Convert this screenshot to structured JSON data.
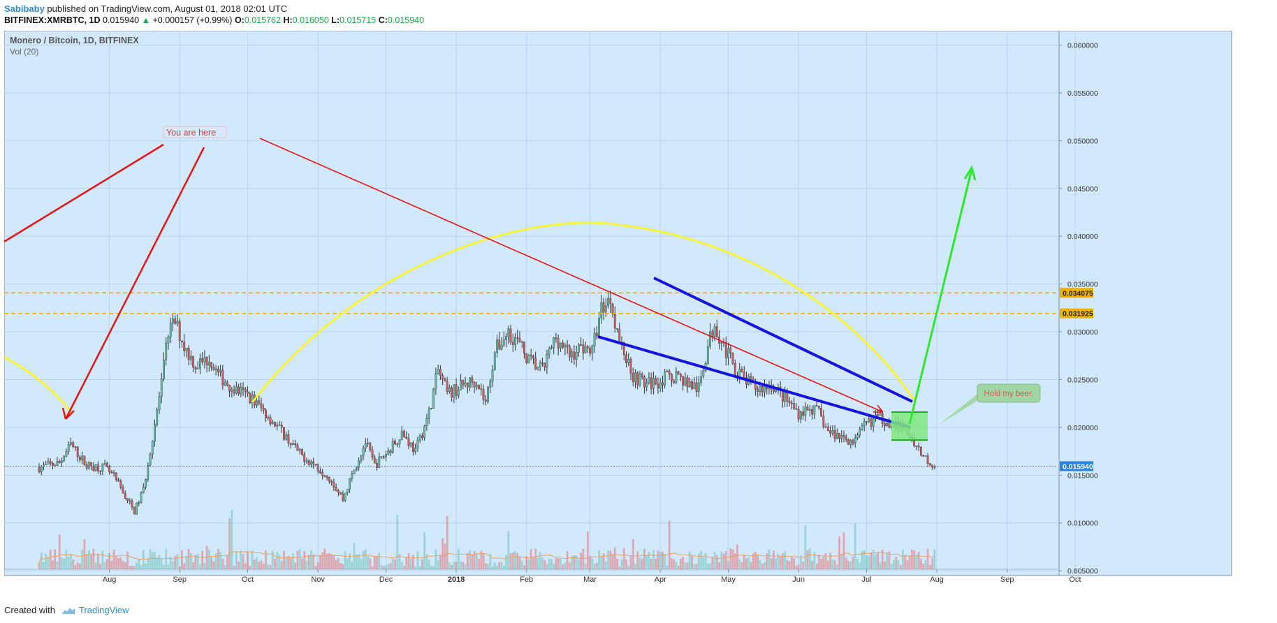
{
  "header": {
    "author": "Sabibaby",
    "published": "published on TradingView.com, August 01, 2018 02:01 UTC"
  },
  "ohlc": {
    "symbol": "BITFINEX:XMRBTC, 1D",
    "last": "0.015940",
    "change_icon": "triangle-up-icon",
    "change": "+0.000157 (+0.99%)",
    "o_label": "O:",
    "o": "0.015762",
    "h_label": "H:",
    "h": "0.016050",
    "l_label": "L:",
    "l": "0.015715",
    "c_label": "C:",
    "c": "0.015940"
  },
  "chart_data": {
    "type": "candlestick",
    "title": "Monero / Bitcoin, 1D, BITFINEX",
    "volume_label": "Vol (20)",
    "x_ticks": [
      "Aug",
      "Sep",
      "Oct",
      "Nov",
      "Dec",
      "2018",
      "Feb",
      "Mar",
      "Apr",
      "May",
      "Jun",
      "Jul",
      "Aug",
      "Sep",
      "Oct"
    ],
    "y_ticks": [
      "0.060000",
      "0.055000",
      "0.050000",
      "0.045000",
      "0.040000",
      "0.035000",
      "0.030000",
      "0.025000",
      "0.020000",
      "0.015000",
      "0.010000",
      "0.005000"
    ],
    "ylim": [
      0.0045,
      0.0615
    ],
    "price_labels": [
      "0.034075",
      "0.031925",
      "0.015940"
    ],
    "horizontal_levels": [
      0.034075,
      0.031925
    ],
    "last_price": 0.01594,
    "close_path": [
      [
        "2017-07-01",
        0.0158
      ],
      [
        "2017-07-10",
        0.0163
      ],
      [
        "2017-07-15",
        0.0182
      ],
      [
        "2017-07-22",
        0.016
      ],
      [
        "2017-07-30",
        0.0158
      ],
      [
        "2017-08-03",
        0.0148
      ],
      [
        "2017-08-08",
        0.0128
      ],
      [
        "2017-08-12",
        0.0112
      ],
      [
        "2017-08-16",
        0.0135
      ],
      [
        "2017-08-20",
        0.019
      ],
      [
        "2017-08-24",
        0.0245
      ],
      [
        "2017-08-27",
        0.03
      ],
      [
        "2017-08-30",
        0.031
      ],
      [
        "2017-09-03",
        0.0285
      ],
      [
        "2017-09-08",
        0.0265
      ],
      [
        "2017-09-14",
        0.0272
      ],
      [
        "2017-09-18",
        0.0255
      ],
      [
        "2017-09-25",
        0.024
      ],
      [
        "2017-10-02",
        0.0232
      ],
      [
        "2017-10-10",
        0.0212
      ],
      [
        "2017-10-18",
        0.019
      ],
      [
        "2017-10-24",
        0.0172
      ],
      [
        "2017-10-30",
        0.0162
      ],
      [
        "2017-11-06",
        0.0148
      ],
      [
        "2017-11-12",
        0.0125
      ],
      [
        "2017-11-16",
        0.015
      ],
      [
        "2017-11-22",
        0.0185
      ],
      [
        "2017-11-26",
        0.016
      ],
      [
        "2017-12-02",
        0.0175
      ],
      [
        "2017-12-08",
        0.0195
      ],
      [
        "2017-12-14",
        0.0175
      ],
      [
        "2017-12-20",
        0.0215
      ],
      [
        "2017-12-24",
        0.026
      ],
      [
        "2017-12-28",
        0.0235
      ],
      [
        "2018-01-05",
        0.0245
      ],
      [
        "2018-01-10",
        0.025
      ],
      [
        "2018-01-14",
        0.0225
      ],
      [
        "2018-01-18",
        0.028
      ],
      [
        "2018-01-24",
        0.03
      ],
      [
        "2018-01-28",
        0.029
      ],
      [
        "2018-02-02",
        0.027
      ],
      [
        "2018-02-08",
        0.026
      ],
      [
        "2018-02-14",
        0.0295
      ],
      [
        "2018-02-20",
        0.0275
      ],
      [
        "2018-02-26",
        0.0285
      ],
      [
        "2018-03-02",
        0.028
      ],
      [
        "2018-03-06",
        0.0325
      ],
      [
        "2018-03-10",
        0.0335
      ],
      [
        "2018-03-14",
        0.029
      ],
      [
        "2018-03-20",
        0.0255
      ],
      [
        "2018-03-26",
        0.0245
      ],
      [
        "2018-04-02",
        0.025
      ],
      [
        "2018-04-08",
        0.0255
      ],
      [
        "2018-04-14",
        0.0245
      ],
      [
        "2018-04-18",
        0.024
      ],
      [
        "2018-04-22",
        0.0285
      ],
      [
        "2018-04-25",
        0.031
      ],
      [
        "2018-04-28",
        0.029
      ],
      [
        "2018-05-03",
        0.0265
      ],
      [
        "2018-05-08",
        0.025
      ],
      [
        "2018-05-14",
        0.024
      ],
      [
        "2018-05-20",
        0.0245
      ],
      [
        "2018-05-26",
        0.023
      ],
      [
        "2018-06-01",
        0.0215
      ],
      [
        "2018-06-06",
        0.022
      ],
      [
        "2018-06-10",
        0.0215
      ],
      [
        "2018-06-14",
        0.0195
      ],
      [
        "2018-06-20",
        0.019
      ],
      [
        "2018-06-26",
        0.0185
      ],
      [
        "2018-07-01",
        0.0205
      ],
      [
        "2018-07-06",
        0.021
      ],
      [
        "2018-07-12",
        0.0205
      ],
      [
        "2018-07-18",
        0.0198
      ],
      [
        "2018-07-22",
        0.0185
      ],
      [
        "2018-07-26",
        0.017
      ],
      [
        "2018-07-31",
        0.01594
      ]
    ],
    "annotations": [
      {
        "text": "You are here"
      },
      {
        "text": "Hold my beer."
      }
    ]
  },
  "footer": {
    "created_with": "Created with",
    "brand": "TradingView",
    "brand_icon": "tradingview-cloud-icon"
  },
  "colors": {
    "background": "#d2e8fc",
    "up": "#6cc3b6",
    "down": "#e47272",
    "yellow": "#f8f434",
    "red": "#e81414",
    "blue": "#1414e0",
    "green": "#2ee82e",
    "level": "#f0b000",
    "price_tag": "#2b82e0"
  }
}
